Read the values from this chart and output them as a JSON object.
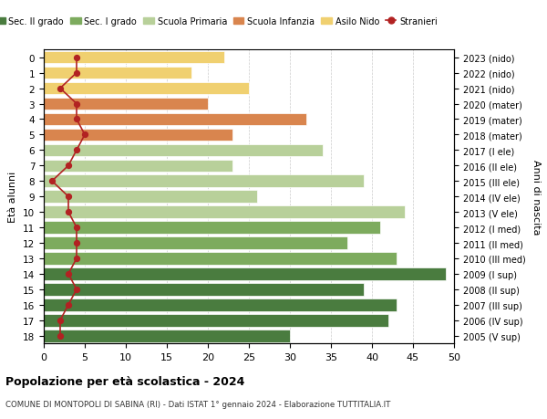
{
  "ages": [
    18,
    17,
    16,
    15,
    14,
    13,
    12,
    11,
    10,
    9,
    8,
    7,
    6,
    5,
    4,
    3,
    2,
    1,
    0
  ],
  "years": [
    "2005 (V sup)",
    "2006 (IV sup)",
    "2007 (III sup)",
    "2008 (II sup)",
    "2009 (I sup)",
    "2010 (III med)",
    "2011 (II med)",
    "2012 (I med)",
    "2013 (V ele)",
    "2014 (IV ele)",
    "2015 (III ele)",
    "2016 (II ele)",
    "2017 (I ele)",
    "2018 (mater)",
    "2019 (mater)",
    "2020 (mater)",
    "2021 (nido)",
    "2022 (nido)",
    "2023 (nido)"
  ],
  "bar_values": [
    30,
    42,
    43,
    39,
    49,
    43,
    37,
    41,
    44,
    26,
    39,
    23,
    34,
    23,
    32,
    20,
    25,
    18,
    22
  ],
  "stranieri": [
    2,
    2,
    3,
    4,
    3,
    4,
    4,
    4,
    3,
    3,
    1,
    3,
    4,
    5,
    4,
    4,
    2,
    4,
    4
  ],
  "bar_colors": [
    "#4a7c3f",
    "#4a7c3f",
    "#4a7c3f",
    "#4a7c3f",
    "#4a7c3f",
    "#7dab5e",
    "#7dab5e",
    "#7dab5e",
    "#b8d09a",
    "#b8d09a",
    "#b8d09a",
    "#b8d09a",
    "#b8d09a",
    "#d9854e",
    "#d9854e",
    "#d9854e",
    "#f0d070",
    "#f0d070",
    "#f0d070"
  ],
  "legend_labels": [
    "Sec. II grado",
    "Sec. I grado",
    "Scuola Primaria",
    "Scuola Infanzia",
    "Asilo Nido",
    "Stranieri"
  ],
  "legend_colors": [
    "#4a7c3f",
    "#7dab5e",
    "#b8d09a",
    "#d9854e",
    "#f0d070",
    "#b22222"
  ],
  "title": "Popolazione per età scolastica - 2024",
  "subtitle": "COMUNE DI MONTOPOLI DI SABINA (RI) - Dati ISTAT 1° gennaio 2024 - Elaborazione TUTTITALIA.IT",
  "ylabel_left": "Età alunni",
  "ylabel_right": "Anni di nascita",
  "xlim": [
    0,
    50
  ],
  "xticks": [
    0,
    5,
    10,
    15,
    20,
    25,
    30,
    35,
    40,
    45,
    50
  ],
  "stranieri_color": "#b22222",
  "bg_color": "#ffffff",
  "grid_color": "#cccccc"
}
